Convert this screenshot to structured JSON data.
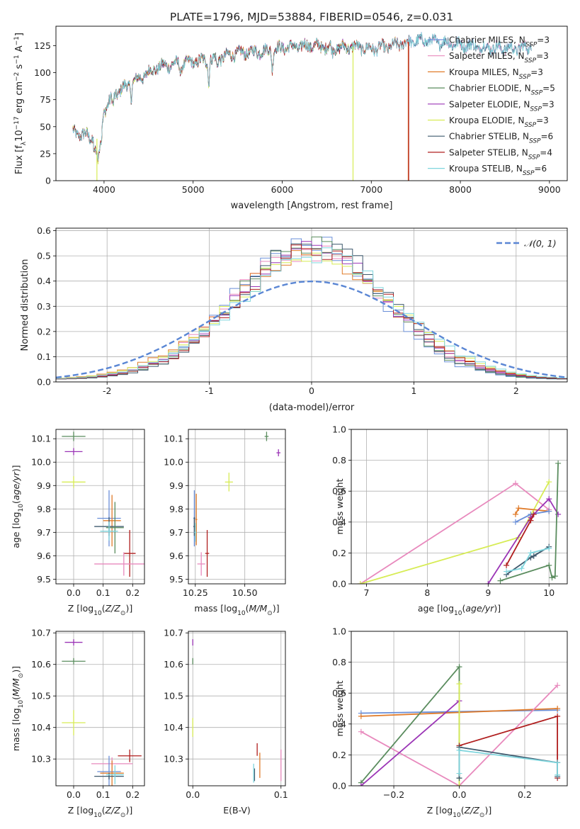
{
  "title": "PLATE=1796, MJD=53884, FIBERID=0546, z=0.031",
  "colors": {
    "chabrier_miles": "#6a8fd8",
    "salpeter_miles": "#e889bd",
    "kroupa_miles": "#e07b2a",
    "chabrier_elodie": "#5a8c5e",
    "salpeter_elodie": "#9b35b6",
    "kroupa_elodie": "#d7ec55",
    "chabrier_stelib": "#3f5a6e",
    "salpeter_stelib": "#b01e1e",
    "kroupa_stelib": "#7fd5dd",
    "normal": "#5a86d4"
  },
  "chart_data": [
    {
      "id": "spectrum",
      "type": "line",
      "title": "PLATE=1796, MJD=53884, FIBERID=0546, z=0.031",
      "xlabel": "wavelength [Angstrom, rest frame]",
      "ylabel_parts": [
        "Flux [f",
        "λ",
        "10",
        "−17",
        " erg cm",
        "−2",
        " s",
        "−1",
        " A",
        "−1",
        "]"
      ],
      "xlim": [
        3460,
        9200
      ],
      "ylim": [
        0,
        143
      ],
      "xticks": [
        4000,
        5000,
        6000,
        7000,
        8000,
        9000
      ],
      "yticks": [
        0,
        25,
        50,
        75,
        100,
        125
      ],
      "legend": [
        {
          "base": "Chabrier MILES, N",
          "sub": "SSP",
          "tail": "=3",
          "color": "#6a8fd8"
        },
        {
          "base": "Salpeter MILES, N",
          "sub": "SSP",
          "tail": "=3",
          "color": "#e889bd"
        },
        {
          "base": "Kroupa MILES, N",
          "sub": "SSP",
          "tail": "=3",
          "color": "#e07b2a"
        },
        {
          "base": "Chabrier ELODIE, N",
          "sub": "SSP",
          "tail": "=5",
          "color": "#5a8c5e"
        },
        {
          "base": "Salpeter ELODIE, N",
          "sub": "SSP",
          "tail": "=3",
          "color": "#9b35b6"
        },
        {
          "base": "Kroupa ELODIE, N",
          "sub": "SSP",
          "tail": "=3",
          "color": "#d7ec55"
        },
        {
          "base": "Chabrier STELIB, N",
          "sub": "SSP",
          "tail": "=6",
          "color": "#3f5a6e"
        },
        {
          "base": "Salpeter STELIB, N",
          "sub": "SSP",
          "tail": "=4",
          "color": "#b01e1e"
        },
        {
          "base": "Kroupa STELIB, N",
          "sub": "SSP",
          "tail": "=6",
          "color": "#7fd5dd"
        }
      ],
      "continuum": [
        [
          3650,
          45
        ],
        [
          3800,
          42
        ],
        [
          3900,
          38
        ],
        [
          3950,
          40
        ],
        [
          4000,
          65
        ],
        [
          4100,
          78
        ],
        [
          4200,
          85
        ],
        [
          4400,
          95
        ],
        [
          4600,
          105
        ],
        [
          4800,
          108
        ],
        [
          5000,
          110
        ],
        [
          5200,
          112
        ],
        [
          5500,
          118
        ],
        [
          5800,
          120
        ],
        [
          6000,
          123
        ],
        [
          6300,
          125
        ],
        [
          6600,
          123
        ],
        [
          6800,
          124
        ],
        [
          7000,
          122
        ],
        [
          7200,
          124
        ],
        [
          7400,
          128
        ],
        [
          7600,
          130
        ],
        [
          7800,
          128
        ],
        [
          8200,
          124
        ],
        [
          8600,
          122
        ],
        [
          8800,
          124
        ]
      ],
      "absorption_lines": [
        [
          3934,
          18
        ],
        [
          3969,
          15
        ],
        [
          4101,
          10
        ],
        [
          4304,
          14
        ],
        [
          4861,
          10
        ],
        [
          5175,
          22
        ],
        [
          5270,
          8
        ],
        [
          5890,
          18
        ],
        [
          6563,
          6
        ]
      ],
      "dropouts": [
        {
          "x": 3920,
          "model": "kroupa_elodie"
        },
        {
          "x": 6795,
          "model": "kroupa_elodie"
        },
        {
          "x": 7415,
          "model": "kroupa_miles"
        },
        {
          "x": 7420,
          "model": "salpeter_stelib"
        }
      ]
    },
    {
      "id": "residuals",
      "type": "step",
      "xlabel": "(data-model)/error",
      "ylabel": "Normed distribution",
      "xlim": [
        -2.5,
        2.5
      ],
      "ylim": [
        0,
        0.61
      ],
      "xticks": [
        -2,
        -1,
        0,
        1,
        2
      ],
      "yticks": [
        0.0,
        0.1,
        0.2,
        0.3,
        0.4,
        0.5,
        0.6
      ],
      "legend": "𝒩(0, 1)",
      "bin_width": 0.1,
      "reference_curve": "normal(0,1)"
    },
    {
      "id": "age_vs_Z",
      "type": "errorbar",
      "xlabel": "Z [log10(Z/Z⊙)]",
      "ylabel": "age  [log10(age/yr)]",
      "xlim": [
        -0.06,
        0.24
      ],
      "ylim": [
        9.48,
        10.14
      ],
      "xticks": [
        0.0,
        0.1,
        0.2
      ],
      "yticks": [
        9.5,
        9.6,
        9.7,
        9.8,
        9.9,
        10.0,
        10.1
      ],
      "points": [
        {
          "model": "chabrier_elodie",
          "x": 0.0,
          "y": 10.11,
          "xerr": 0.04,
          "yerr": 0.02
        },
        {
          "model": "salpeter_elodie",
          "x": 0.0,
          "y": 10.045,
          "xerr": 0.03,
          "yerr": 0.015
        },
        {
          "model": "kroupa_elodie",
          "x": 0.0,
          "y": 9.915,
          "xerr": 0.04,
          "yerr": 0.025
        },
        {
          "model": "chabrier_miles",
          "x": 0.12,
          "y": 9.76,
          "xerr": 0.04,
          "yerr": 0.12
        },
        {
          "model": "kroupa_miles",
          "x": 0.13,
          "y": 9.75,
          "xerr": 0.03,
          "yerr": 0.11
        },
        {
          "model": "chabrier_stelib",
          "x": 0.12,
          "y": 9.725,
          "xerr": 0.05,
          "yerr": 0.04
        },
        {
          "model": "chabrier_elodie_b",
          "x": 0.14,
          "y": 9.72,
          "xerr": 0.03,
          "yerr": 0.11
        },
        {
          "model": "kroupa_stelib",
          "x": 0.12,
          "y": 9.705,
          "xerr": 0.03,
          "yerr": 0.04
        },
        {
          "model": "salpeter_stelib",
          "x": 0.19,
          "y": 9.61,
          "xerr": 0.02,
          "yerr": 0.1
        },
        {
          "model": "salpeter_miles",
          "x": 0.17,
          "y": 9.565,
          "xerr": 0.1,
          "yerr": 0.05
        }
      ]
    },
    {
      "id": "age_vs_mass",
      "type": "errorbar",
      "xlabel": "mass [log10(M/M⊙)]",
      "xlim": [
        10.215,
        10.705
      ],
      "ylim": [
        9.48,
        10.14
      ],
      "xticks": [
        10.25,
        10.5
      ],
      "yticks": [
        9.5,
        9.6,
        9.7,
        9.8,
        9.9,
        10.0,
        10.1
      ],
      "points": [
        {
          "model": "chabrier_elodie",
          "x": 10.61,
          "y": 10.11,
          "xerr": 0.01,
          "yerr": 0.02
        },
        {
          "model": "salpeter_elodie",
          "x": 10.67,
          "y": 10.04,
          "xerr": 0.01,
          "yerr": 0.015
        },
        {
          "model": "kroupa_elodie",
          "x": 10.42,
          "y": 9.915,
          "xerr": 0.02,
          "yerr": 0.04
        },
        {
          "model": "chabrier_miles",
          "x": 10.245,
          "y": 9.76,
          "xerr": 0.005,
          "yerr": 0.12
        },
        {
          "model": "kroupa_miles",
          "x": 10.255,
          "y": 9.755,
          "xerr": 0.005,
          "yerr": 0.11
        },
        {
          "model": "chabrier_stelib",
          "x": 10.245,
          "y": 9.725,
          "xerr": 0.005,
          "yerr": 0.04
        },
        {
          "model": "kroupa_stelib",
          "x": 10.25,
          "y": 9.7,
          "xerr": 0.005,
          "yerr": 0.04
        },
        {
          "model": "salpeter_stelib",
          "x": 10.31,
          "y": 9.61,
          "xerr": 0.01,
          "yerr": 0.1
        },
        {
          "model": "salpeter_miles",
          "x": 10.28,
          "y": 9.565,
          "xerr": 0.02,
          "yerr": 0.05
        }
      ]
    },
    {
      "id": "weight_vs_age",
      "type": "line",
      "xlabel": "age  [log10(age/yr)]",
      "ylabel": "mass weight",
      "xlim": [
        6.75,
        10.3
      ],
      "ylim": [
        0,
        1.0
      ],
      "xticks": [
        7,
        8,
        9,
        10
      ],
      "yticks": [
        0.0,
        0.2,
        0.4,
        0.6,
        0.8,
        1.0
      ],
      "series": [
        {
          "model": "salpeter_miles",
          "x": [
            6.9,
            9.45,
            10.0
          ],
          "y": [
            0.0,
            0.65,
            0.48
          ]
        },
        {
          "model": "kroupa_elodie",
          "x": [
            6.9,
            9.5,
            10.0
          ],
          "y": [
            0.0,
            0.3,
            0.66
          ]
        },
        {
          "model": "kroupa_miles",
          "x": [
            9.45,
            9.5,
            10.0
          ],
          "y": [
            0.45,
            0.49,
            0.47
          ]
        },
        {
          "model": "chabrier_miles",
          "x": [
            9.45,
            9.7,
            10.0
          ],
          "y": [
            0.4,
            0.45,
            0.47
          ]
        },
        {
          "model": "salpeter_elodie",
          "x": [
            9.0,
            9.7,
            10.0,
            10.15
          ],
          "y": [
            0.0,
            0.43,
            0.55,
            0.45
          ]
        },
        {
          "model": "salpeter_stelib",
          "x": [
            9.3,
            9.7,
            9.75
          ],
          "y": [
            0.12,
            0.41,
            0.45
          ]
        },
        {
          "model": "chabrier_elodie",
          "x": [
            9.2,
            10.0,
            10.05,
            10.1,
            10.15
          ],
          "y": [
            0.02,
            0.12,
            0.04,
            0.05,
            0.78
          ]
        },
        {
          "model": "chabrier_stelib",
          "x": [
            9.3,
            9.7,
            10.0,
            9.75
          ],
          "y": [
            0.06,
            0.17,
            0.24,
            0.18
          ]
        },
        {
          "model": "kroupa_stelib",
          "x": [
            9.3,
            9.55,
            9.7,
            10.0
          ],
          "y": [
            0.08,
            0.1,
            0.2,
            0.23
          ]
        }
      ]
    },
    {
      "id": "mass_vs_Z",
      "type": "errorbar",
      "xlabel": "Z [log10(Z/Z⊙)]",
      "ylabel": "mass [log10(M/M⊙)]",
      "xlim": [
        -0.06,
        0.24
      ],
      "ylim": [
        10.215,
        10.705
      ],
      "xticks": [
        0.0,
        0.1,
        0.2
      ],
      "yticks": [
        10.3,
        10.4,
        10.5,
        10.6,
        10.7
      ],
      "points": [
        {
          "model": "salpeter_elodie",
          "x": 0.0,
          "y": 10.67,
          "xerr": 0.03,
          "yerr": 0.01
        },
        {
          "model": "chabrier_elodie",
          "x": 0.0,
          "y": 10.61,
          "xerr": 0.04,
          "yerr": 0.01
        },
        {
          "model": "kroupa_elodie",
          "x": 0.0,
          "y": 10.415,
          "xerr": 0.04,
          "yerr": 0.04
        },
        {
          "model": "salpeter_stelib",
          "x": 0.19,
          "y": 10.31,
          "xerr": 0.04,
          "yerr": 0.02
        },
        {
          "model": "salpeter_miles",
          "x": 0.13,
          "y": 10.285,
          "xerr": 0.07,
          "yerr": 0.02
        },
        {
          "model": "chabrier_miles",
          "x": 0.12,
          "y": 10.26,
          "xerr": 0.04,
          "yerr": 0.05
        },
        {
          "model": "kroupa_miles",
          "x": 0.13,
          "y": 10.255,
          "xerr": 0.04,
          "yerr": 0.04
        },
        {
          "model": "chabrier_stelib",
          "x": 0.12,
          "y": 10.245,
          "xerr": 0.05,
          "yerr": 0.01
        },
        {
          "model": "kroupa_stelib",
          "x": 0.14,
          "y": 10.25,
          "xerr": 0.03,
          "yerr": 0.03
        }
      ]
    },
    {
      "id": "mass_vs_ebv",
      "type": "errorbar",
      "xlabel": "E(B-V)",
      "xlim": [
        -0.005,
        0.105
      ],
      "ylim": [
        10.215,
        10.705
      ],
      "xticks": [
        0.0,
        0.1
      ],
      "yticks": [
        10.3,
        10.4,
        10.5,
        10.6,
        10.7
      ],
      "points": [
        {
          "model": "salpeter_elodie",
          "x": 0.0,
          "y": 10.67,
          "xerr": 0.0005,
          "yerr": 0.01
        },
        {
          "model": "chabrier_elodie",
          "x": 0.0,
          "y": 10.61,
          "xerr": 0.0005,
          "yerr": 0.01
        },
        {
          "model": "kroupa_elodie",
          "x": 0.0,
          "y": 10.4,
          "xerr": 0.0005,
          "yerr": 0.03
        },
        {
          "model": "salpeter_stelib",
          "x": 0.073,
          "y": 10.33,
          "xerr": 0.0005,
          "yerr": 0.02
        },
        {
          "model": "kroupa_miles",
          "x": 0.076,
          "y": 10.28,
          "xerr": 0.0005,
          "yerr": 0.04
        },
        {
          "model": "chabrier_stelib",
          "x": 0.07,
          "y": 10.25,
          "xerr": 0.0005,
          "yerr": 0.02
        },
        {
          "model": "kroupa_stelib",
          "x": 0.069,
          "y": 10.255,
          "xerr": 0.0005,
          "yerr": 0.03
        },
        {
          "model": "salpeter_miles",
          "x": 0.1,
          "y": 10.28,
          "xerr": 0.0005,
          "yerr": 0.05
        }
      ]
    },
    {
      "id": "weight_vs_Z",
      "type": "line",
      "xlabel": "Z [log10(Z/Z⊙)]",
      "ylabel": "mass weight",
      "xlim": [
        -0.33,
        0.33
      ],
      "ylim": [
        0,
        1.0
      ],
      "xticks": [
        -0.2,
        0.0,
        0.2
      ],
      "yticks": [
        0.0,
        0.2,
        0.4,
        0.6,
        0.8,
        1.0
      ],
      "series": [
        {
          "model": "chabrier_miles",
          "x": [
            -0.3,
            0.3
          ],
          "y": [
            0.47,
            0.49
          ]
        },
        {
          "model": "kroupa_miles",
          "x": [
            -0.3,
            0.3
          ],
          "y": [
            0.45,
            0.5
          ]
        },
        {
          "model": "salpeter_miles",
          "x": [
            -0.3,
            0.0,
            0.3
          ],
          "y": [
            0.35,
            0.0,
            0.65
          ]
        },
        {
          "model": "chabrier_elodie",
          "x": [
            -0.3,
            0.0,
            0.0
          ],
          "y": [
            0.02,
            0.77,
            0.05
          ]
        },
        {
          "model": "salpeter_elodie",
          "x": [
            -0.3,
            0.0
          ],
          "y": [
            0.0,
            0.55
          ]
        },
        {
          "model": "kroupa_elodie",
          "x": [
            0.0,
            0.0
          ],
          "y": [
            0.0,
            0.66
          ]
        },
        {
          "model": "salpeter_stelib",
          "x": [
            0.0,
            0.3,
            0.3
          ],
          "y": [
            0.26,
            0.45,
            0.05
          ]
        },
        {
          "model": "chabrier_stelib",
          "x": [
            0.0,
            0.0,
            0.3,
            0.3
          ],
          "y": [
            0.05,
            0.25,
            0.15,
            0.06
          ]
        },
        {
          "model": "kroupa_stelib",
          "x": [
            0.0,
            0.0,
            0.3,
            0.3
          ],
          "y": [
            0.08,
            0.23,
            0.15,
            0.07
          ]
        }
      ]
    }
  ]
}
